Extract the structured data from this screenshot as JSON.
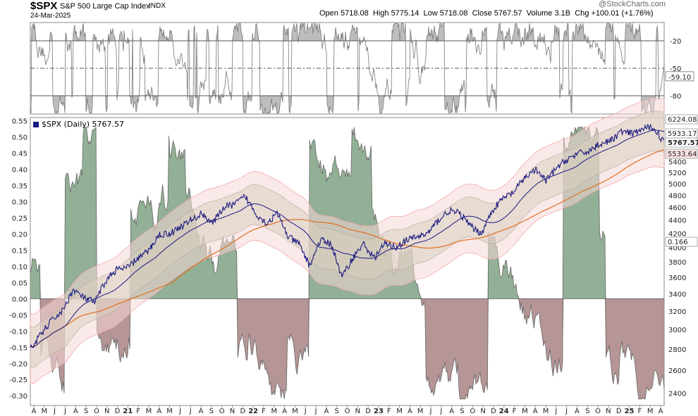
{
  "header": {
    "symbol": "$SPX",
    "name": "S&P 500 Large Cap Index",
    "exchange": "INDX",
    "date": "24-Mar-2025",
    "open_label": "Open",
    "open": "5718.08",
    "high_label": "High",
    "high": "5775.14",
    "low_label": "Low",
    "low": "5718.08",
    "close_label": "Close",
    "close": "5767.57",
    "volume_label": "Volume",
    "volume": "3.1B",
    "chg_label": "Chg",
    "chg": "+100.01 (+1.76%)",
    "watermark": "@StockCharts.com"
  },
  "legend": {
    "series_label": "$SPX (Daily) 5767.57"
  },
  "chart_data": [
    {
      "type": "line",
      "panel": "upper-oscillator",
      "y_ticks": [
        "-20",
        "-50",
        "-80"
      ],
      "ylim": [
        -100,
        0
      ],
      "current_value_label": "-59.10",
      "reference_lines": [
        -20,
        -50,
        -80
      ]
    },
    {
      "type": "area",
      "panel": "main",
      "left_axis": {
        "ticks": [
          "0.55",
          "0.50",
          "0.45",
          "0.40",
          "0.35",
          "0.30",
          "0.25",
          "0.20",
          "0.15",
          "0.10",
          "0.05",
          "0.00",
          "-0.05",
          "-0.10",
          "-0.15",
          "-0.20",
          "-0.25",
          "-0.30"
        ],
        "ylim": [
          -0.33,
          0.56
        ]
      },
      "right_axis": {
        "ticks": [
          "5400",
          "5200",
          "5000",
          "4800",
          "4600",
          "4400",
          "4200",
          "4000",
          "3800",
          "3600",
          "3400",
          "3200",
          "3000",
          "2800",
          "2600",
          "2400"
        ],
        "log_scale": true,
        "ylim": [
          2300,
          6300
        ]
      },
      "right_value_labels": [
        {
          "text": "6224.08",
          "color": "#ffffff",
          "bg": "#ffffff"
        },
        {
          "text": "5933.17",
          "color": "#000000",
          "bg": "#ffffff"
        },
        {
          "text": "5767.57",
          "color": "#000000",
          "bg": "#ffffff"
        },
        {
          "text": "5533.64",
          "color": "#000000",
          "bg": "#fbe3e3"
        },
        {
          "text": "0.166",
          "color": "#000000",
          "bg": "#ffffff"
        }
      ],
      "x_ticks": [
        "A",
        "M",
        "J",
        "J",
        "A",
        "S",
        "O",
        "N",
        "D",
        "21",
        "F",
        "M",
        "A",
        "M",
        "J",
        "J",
        "A",
        "S",
        "O",
        "N",
        "D",
        "22",
        "F",
        "M",
        "A",
        "M",
        "J",
        "J",
        "A",
        "S",
        "O",
        "N",
        "D",
        "23",
        "F",
        "M",
        "A",
        "M",
        "J",
        "J",
        "A",
        "S",
        "O",
        "N",
        "D",
        "24",
        "F",
        "M",
        "A",
        "M",
        "J",
        "J",
        "A",
        "S",
        "O",
        "N",
        "D",
        "25",
        "F",
        "M",
        "A"
      ],
      "price_series_monthly": [
        {
          "x": "2020-04",
          "close": 2800
        },
        {
          "x": "2020-05",
          "close": 2950
        },
        {
          "x": "2020-06",
          "close": 3100
        },
        {
          "x": "2020-07",
          "close": 3200
        },
        {
          "x": "2020-08",
          "close": 3450
        },
        {
          "x": "2020-09",
          "close": 3350
        },
        {
          "x": "2020-10",
          "close": 3300
        },
        {
          "x": "2020-11",
          "close": 3550
        },
        {
          "x": "2020-12",
          "close": 3700
        },
        {
          "x": "2021-01",
          "close": 3720
        },
        {
          "x": "2021-02",
          "close": 3850
        },
        {
          "x": "2021-03",
          "close": 3950
        },
        {
          "x": "2021-04",
          "close": 4180
        },
        {
          "x": "2021-05",
          "close": 4200
        },
        {
          "x": "2021-06",
          "close": 4300
        },
        {
          "x": "2021-07",
          "close": 4400
        },
        {
          "x": "2021-08",
          "close": 4500
        },
        {
          "x": "2021-09",
          "close": 4350
        },
        {
          "x": "2021-10",
          "close": 4600
        },
        {
          "x": "2021-11",
          "close": 4650
        },
        {
          "x": "2021-12",
          "close": 4780
        },
        {
          "x": "2022-01",
          "close": 4500
        },
        {
          "x": "2022-02",
          "close": 4350
        },
        {
          "x": "2022-03",
          "close": 4500
        },
        {
          "x": "2022-04",
          "close": 4150
        },
        {
          "x": "2022-05",
          "close": 4050
        },
        {
          "x": "2022-06",
          "close": 3750
        },
        {
          "x": "2022-07",
          "close": 4100
        },
        {
          "x": "2022-08",
          "close": 4050
        },
        {
          "x": "2022-09",
          "close": 3600
        },
        {
          "x": "2022-10",
          "close": 3850
        },
        {
          "x": "2022-11",
          "close": 4050
        },
        {
          "x": "2022-12",
          "close": 3850
        },
        {
          "x": "2023-01",
          "close": 4050
        },
        {
          "x": "2023-02",
          "close": 4000
        },
        {
          "x": "2023-03",
          "close": 4100
        },
        {
          "x": "2023-04",
          "close": 4150
        },
        {
          "x": "2023-05",
          "close": 4200
        },
        {
          "x": "2023-06",
          "close": 4400
        },
        {
          "x": "2023-07",
          "close": 4550
        },
        {
          "x": "2023-08",
          "close": 4500
        },
        {
          "x": "2023-09",
          "close": 4300
        },
        {
          "x": "2023-10",
          "close": 4200
        },
        {
          "x": "2023-11",
          "close": 4550
        },
        {
          "x": "2023-12",
          "close": 4750
        },
        {
          "x": "2024-01",
          "close": 4850
        },
        {
          "x": "2024-02",
          "close": 5100
        },
        {
          "x": "2024-03",
          "close": 5250
        },
        {
          "x": "2024-04",
          "close": 5050
        },
        {
          "x": "2024-05",
          "close": 5280
        },
        {
          "x": "2024-06",
          "close": 5450
        },
        {
          "x": "2024-07",
          "close": 5550
        },
        {
          "x": "2024-08",
          "close": 5600
        },
        {
          "x": "2024-09",
          "close": 5750
        },
        {
          "x": "2024-10",
          "close": 5800
        },
        {
          "x": "2024-11",
          "close": 6000
        },
        {
          "x": "2024-12",
          "close": 5950
        },
        {
          "x": "2025-01",
          "close": 6050
        },
        {
          "x": "2025-02",
          "close": 6100
        },
        {
          "x": "2025-03",
          "close": 5767.57
        }
      ],
      "colors": {
        "price": "#1a1a80",
        "ma_fast": "#1a1a80",
        "ma_slow": "#e07020",
        "band_outer_fill": "#f5d7d7",
        "band_outer_line": "#f0a0a0",
        "band_inner_fill": "#d8d0c0",
        "osc_pos_fill": "#7fa283",
        "osc_neg_fill": "#a88284",
        "osc_line": "#666666"
      },
      "grid": false
    }
  ]
}
